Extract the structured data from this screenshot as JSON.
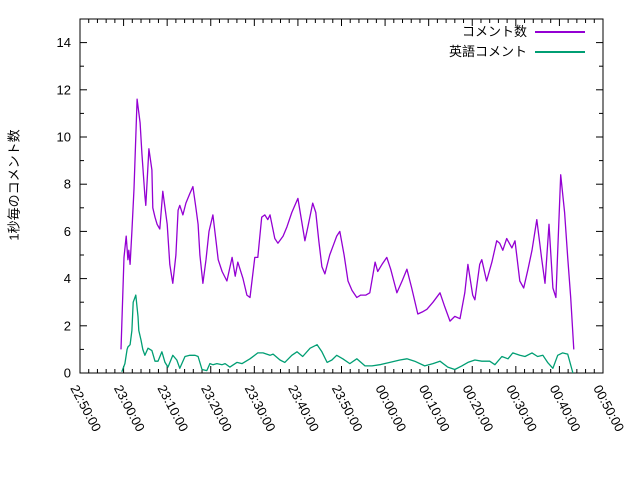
{
  "figure": {
    "title": "",
    "ylabel": "1秒毎のコメント数",
    "background_color": "#ffffff",
    "axis_color": "#000000"
  },
  "chart_data": {
    "type": "line",
    "title": "",
    "xlabel": "",
    "ylabel": "1秒毎のコメント数",
    "x_unit": "minutes after 22:50:00",
    "xlim": [
      0,
      120
    ],
    "ylim": [
      0,
      15
    ],
    "grid": false,
    "legend_position": "top-right-inside",
    "yticks": [
      0,
      2,
      4,
      6,
      8,
      10,
      12,
      14
    ],
    "y_minor_step": 1,
    "x_minor_step": 2,
    "xticks": [
      {
        "pos": 0,
        "label": "22:50:00"
      },
      {
        "pos": 10,
        "label": "23:00:00"
      },
      {
        "pos": 20,
        "label": "23:10:00"
      },
      {
        "pos": 30,
        "label": "23:20:00"
      },
      {
        "pos": 40,
        "label": "23:30:00"
      },
      {
        "pos": 50,
        "label": "23:40:00"
      },
      {
        "pos": 60,
        "label": "23:50:00"
      },
      {
        "pos": 70,
        "label": "00:00:00"
      },
      {
        "pos": 80,
        "label": "00:10:00"
      },
      {
        "pos": 90,
        "label": "00:20:00"
      },
      {
        "pos": 100,
        "label": "00:30:00"
      },
      {
        "pos": 110,
        "label": "00:40:00"
      },
      {
        "pos": 120,
        "label": "00:50:00"
      }
    ],
    "series": [
      {
        "name": "コメント数",
        "color": "#9400d3",
        "points": [
          [
            9.4,
            1.0
          ],
          [
            10.1,
            4.9
          ],
          [
            10.6,
            5.8
          ],
          [
            11.0,
            4.8
          ],
          [
            11.2,
            5.2
          ],
          [
            11.5,
            4.6
          ],
          [
            11.9,
            6.0
          ],
          [
            12.4,
            7.8
          ],
          [
            13.1,
            11.6
          ],
          [
            13.8,
            10.6
          ],
          [
            14.2,
            9.3
          ],
          [
            14.9,
            7.5
          ],
          [
            15.1,
            7.1
          ],
          [
            15.8,
            9.5
          ],
          [
            16.5,
            8.6
          ],
          [
            16.7,
            7.0
          ],
          [
            17.2,
            6.6
          ],
          [
            17.7,
            6.3
          ],
          [
            18.3,
            6.1
          ],
          [
            19.0,
            7.7
          ],
          [
            20.0,
            6.3
          ],
          [
            20.6,
            4.6
          ],
          [
            21.1,
            4.0
          ],
          [
            21.3,
            3.8
          ],
          [
            22.0,
            5.0
          ],
          [
            22.5,
            6.9
          ],
          [
            22.9,
            7.1
          ],
          [
            23.6,
            6.7
          ],
          [
            24.3,
            7.2
          ],
          [
            25.2,
            7.6
          ],
          [
            25.9,
            7.9
          ],
          [
            26.6,
            7.0
          ],
          [
            27.1,
            6.3
          ],
          [
            27.5,
            5.0
          ],
          [
            28.2,
            3.8
          ],
          [
            28.9,
            4.8
          ],
          [
            29.6,
            6.0
          ],
          [
            30.5,
            6.7
          ],
          [
            31.2,
            5.6
          ],
          [
            31.7,
            4.8
          ],
          [
            32.6,
            4.3
          ],
          [
            33.7,
            3.9
          ],
          [
            34.9,
            4.9
          ],
          [
            35.6,
            4.1
          ],
          [
            36.2,
            4.7
          ],
          [
            37.4,
            4.0
          ],
          [
            38.3,
            3.3
          ],
          [
            39.0,
            3.2
          ],
          [
            40.1,
            4.9
          ],
          [
            40.8,
            4.9
          ],
          [
            41.7,
            6.6
          ],
          [
            42.4,
            6.7
          ],
          [
            43.1,
            6.5
          ],
          [
            43.6,
            6.7
          ],
          [
            44.7,
            5.7
          ],
          [
            45.4,
            5.5
          ],
          [
            46.6,
            5.8
          ],
          [
            47.5,
            6.2
          ],
          [
            48.6,
            6.8
          ],
          [
            50.0,
            7.4
          ],
          [
            50.9,
            6.4
          ],
          [
            51.6,
            5.6
          ],
          [
            52.3,
            6.2
          ],
          [
            53.4,
            7.2
          ],
          [
            54.1,
            6.8
          ],
          [
            54.8,
            5.6
          ],
          [
            55.5,
            4.5
          ],
          [
            56.2,
            4.2
          ],
          [
            57.3,
            5.0
          ],
          [
            58.3,
            5.5
          ],
          [
            58.9,
            5.8
          ],
          [
            59.6,
            6.0
          ],
          [
            60.6,
            5.0
          ],
          [
            61.5,
            3.9
          ],
          [
            62.4,
            3.5
          ],
          [
            63.5,
            3.2
          ],
          [
            64.4,
            3.3
          ],
          [
            65.6,
            3.3
          ],
          [
            66.5,
            3.4
          ],
          [
            67.7,
            4.7
          ],
          [
            68.3,
            4.3
          ],
          [
            69.3,
            4.6
          ],
          [
            70.4,
            4.9
          ],
          [
            71.3,
            4.4
          ],
          [
            72.0,
            3.9
          ],
          [
            72.7,
            3.4
          ],
          [
            73.9,
            3.9
          ],
          [
            75.0,
            4.4
          ],
          [
            76.1,
            3.6
          ],
          [
            77.5,
            2.5
          ],
          [
            78.7,
            2.6
          ],
          [
            79.6,
            2.7
          ],
          [
            81.0,
            3.0
          ],
          [
            82.6,
            3.4
          ],
          [
            83.7,
            2.8
          ],
          [
            84.9,
            2.2
          ],
          [
            86.0,
            2.4
          ],
          [
            87.2,
            2.3
          ],
          [
            88.3,
            3.4
          ],
          [
            89.0,
            4.6
          ],
          [
            90.1,
            3.3
          ],
          [
            90.6,
            3.1
          ],
          [
            91.7,
            4.6
          ],
          [
            92.2,
            4.8
          ],
          [
            93.3,
            3.9
          ],
          [
            94.5,
            4.7
          ],
          [
            95.6,
            5.6
          ],
          [
            96.3,
            5.5
          ],
          [
            97.0,
            5.2
          ],
          [
            97.9,
            5.7
          ],
          [
            99.1,
            5.3
          ],
          [
            99.8,
            5.6
          ],
          [
            100.9,
            3.9
          ],
          [
            101.8,
            3.6
          ],
          [
            102.8,
            4.4
          ],
          [
            103.7,
            5.2
          ],
          [
            104.8,
            6.5
          ],
          [
            105.9,
            4.9
          ],
          [
            106.7,
            3.8
          ],
          [
            107.6,
            6.3
          ],
          [
            108.5,
            3.6
          ],
          [
            109.2,
            3.2
          ],
          [
            110.3,
            8.4
          ],
          [
            111.2,
            6.8
          ],
          [
            111.9,
            4.9
          ],
          [
            112.6,
            3.2
          ],
          [
            113.3,
            1.0
          ]
        ]
      },
      {
        "name": "英語コメント",
        "color": "#009e73",
        "points": [
          [
            9.6,
            0.05
          ],
          [
            10.3,
            0.4
          ],
          [
            10.8,
            1.0
          ],
          [
            11.0,
            1.1
          ],
          [
            11.5,
            1.2
          ],
          [
            11.9,
            1.8
          ],
          [
            12.2,
            3.0
          ],
          [
            12.8,
            3.3
          ],
          [
            13.3,
            2.4
          ],
          [
            13.5,
            1.8
          ],
          [
            14.0,
            1.4
          ],
          [
            14.4,
            1.0
          ],
          [
            14.9,
            0.75
          ],
          [
            15.6,
            1.05
          ],
          [
            16.5,
            0.95
          ],
          [
            17.2,
            0.5
          ],
          [
            17.9,
            0.5
          ],
          [
            18.8,
            0.9
          ],
          [
            19.5,
            0.45
          ],
          [
            20.2,
            0.25
          ],
          [
            21.3,
            0.75
          ],
          [
            22.2,
            0.55
          ],
          [
            22.9,
            0.2
          ],
          [
            24.1,
            0.7
          ],
          [
            25.2,
            0.75
          ],
          [
            26.4,
            0.75
          ],
          [
            27.1,
            0.7
          ],
          [
            28.0,
            0.15
          ],
          [
            29.1,
            0.1
          ],
          [
            29.8,
            0.4
          ],
          [
            30.5,
            0.35
          ],
          [
            31.4,
            0.4
          ],
          [
            32.6,
            0.35
          ],
          [
            33.3,
            0.4
          ],
          [
            34.4,
            0.25
          ],
          [
            36.0,
            0.45
          ],
          [
            37.2,
            0.4
          ],
          [
            39.0,
            0.6
          ],
          [
            40.8,
            0.85
          ],
          [
            42.0,
            0.85
          ],
          [
            43.6,
            0.75
          ],
          [
            44.3,
            0.8
          ],
          [
            45.9,
            0.55
          ],
          [
            47.0,
            0.45
          ],
          [
            48.6,
            0.75
          ],
          [
            49.8,
            0.9
          ],
          [
            51.1,
            0.7
          ],
          [
            52.8,
            1.05
          ],
          [
            54.4,
            1.2
          ],
          [
            55.5,
            0.9
          ],
          [
            56.7,
            0.45
          ],
          [
            57.8,
            0.55
          ],
          [
            58.9,
            0.75
          ],
          [
            60.3,
            0.6
          ],
          [
            61.9,
            0.4
          ],
          [
            63.5,
            0.6
          ],
          [
            65.4,
            0.3
          ],
          [
            67.0,
            0.3
          ],
          [
            68.8,
            0.35
          ],
          [
            71.1,
            0.45
          ],
          [
            73.4,
            0.55
          ],
          [
            75.0,
            0.6
          ],
          [
            76.8,
            0.5
          ],
          [
            79.1,
            0.3
          ],
          [
            81.0,
            0.4
          ],
          [
            82.6,
            0.5
          ],
          [
            84.4,
            0.25
          ],
          [
            86.0,
            0.15
          ],
          [
            87.6,
            0.3
          ],
          [
            89.0,
            0.45
          ],
          [
            90.6,
            0.55
          ],
          [
            92.2,
            0.5
          ],
          [
            94.0,
            0.5
          ],
          [
            95.2,
            0.35
          ],
          [
            96.8,
            0.7
          ],
          [
            98.2,
            0.6
          ],
          [
            99.3,
            0.85
          ],
          [
            100.9,
            0.75
          ],
          [
            102.1,
            0.7
          ],
          [
            103.7,
            0.85
          ],
          [
            105.0,
            0.7
          ],
          [
            106.2,
            0.75
          ],
          [
            107.3,
            0.45
          ],
          [
            108.5,
            0.2
          ],
          [
            109.6,
            0.75
          ],
          [
            110.7,
            0.85
          ],
          [
            111.9,
            0.8
          ],
          [
            113.1,
            0.0
          ]
        ]
      }
    ]
  }
}
